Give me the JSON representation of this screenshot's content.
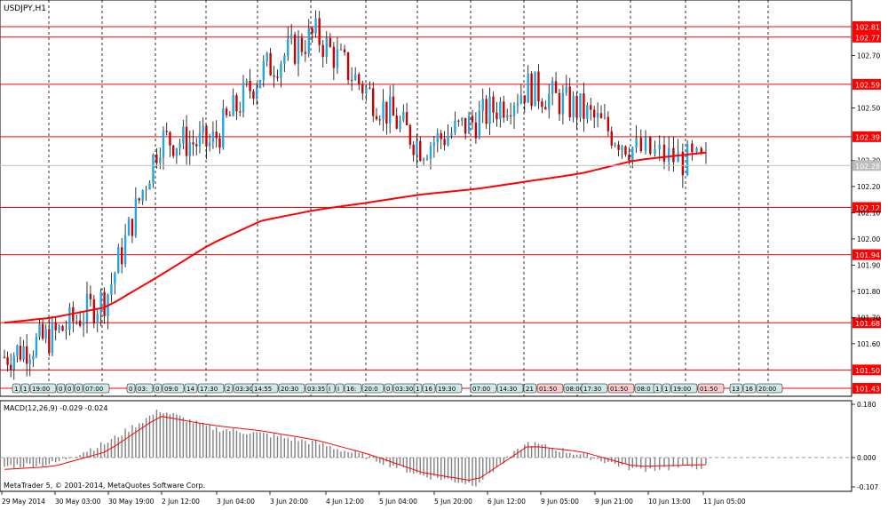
{
  "window": {
    "title": "USDJPY,H1"
  },
  "price_panel": {
    "horizontal_levels": [
      "102.81",
      "102.77",
      "102.59",
      "102.39",
      "102.12",
      "101.94",
      "101.68",
      "101.50",
      "101.43"
    ],
    "current_price": "102.28",
    "axis_ticks": [
      "102.70",
      "102.50",
      "102.30",
      "102.10",
      "101.90",
      "101.70",
      "101.60",
      "102.00",
      "102.20",
      "101.80"
    ],
    "level_color": "#ff0000",
    "bull_color": "#1ea7e1",
    "bear_color": "#cc0000",
    "ma_color": "#ff0000"
  },
  "session_bar": {
    "groups": [
      {
        "items": [
          "1",
          "1",
          "19:00",
          "0",
          "0",
          "0",
          "07:00"
        ]
      },
      {
        "items": [
          "0",
          "03:",
          "0",
          "09:0",
          "14",
          "17:30",
          "2",
          "03:30"
        ]
      },
      {
        "items": [
          "14:55",
          "20:30",
          "03:35"
        ]
      },
      {
        "items": [
          "I",
          "I",
          "16:",
          "20:0",
          "0",
          "03:30"
        ]
      },
      {
        "items": [
          "1",
          "16",
          "19:30"
        ]
      },
      {
        "items": [
          "07:00",
          "14:30",
          "21",
          "01:50",
          "08:00"
        ]
      },
      {
        "items": [
          "17:30",
          "01:50",
          "08:0"
        ]
      },
      {
        "items": [
          "1",
          "1",
          "19:00",
          "01:50"
        ]
      },
      {
        "items": [
          "13",
          "16",
          "20:00"
        ]
      }
    ]
  },
  "macd_panel": {
    "label": "MACD(12,26,9) -0.029 -0.024",
    "axis_ticks": [
      "0.180",
      "0.000",
      "-0.107"
    ],
    "histogram_color": "#808080",
    "signal_color": "#ff0000"
  },
  "time_axis": {
    "labels": [
      "29 May 2014",
      "30 May 03:00",
      "30 May 19:00",
      "2 Jun 12:00",
      "3 Jun 04:00",
      "3 Jun 20:00",
      "4 Jun 12:00",
      "5 Jun 04:00",
      "5 Jun 20:00",
      "6 Jun 12:00",
      "9 Jun 05:00",
      "9 Jun 21:00",
      "10 Jun 13:00",
      "11 Jun 05:00"
    ]
  },
  "copyright": "MetaTrader 5, © 2001-2014, MetaQuotes Software Corp.",
  "chart_data": {
    "type": "candlestick",
    "symbol": "USDJPY",
    "timeframe": "H1",
    "ylim": [
      101.43,
      102.85
    ],
    "series": [
      {
        "name": "close",
        "x": [
          "29 May 2014",
          "30 May 03:00",
          "30 May 19:00",
          "2 Jun 12:00",
          "3 Jun 04:00",
          "3 Jun 20:00",
          "4 Jun 12:00",
          "5 Jun 04:00",
          "5 Jun 20:00",
          "6 Jun 12:00",
          "9 Jun 05:00",
          "9 Jun 21:00",
          "10 Jun 13:00",
          "11 Jun 05:00"
        ],
        "values": [
          101.55,
          101.63,
          101.78,
          102.38,
          102.36,
          102.64,
          102.78,
          102.55,
          102.35,
          102.45,
          102.58,
          102.49,
          102.34,
          102.28
        ]
      },
      {
        "name": "moving_average",
        "values": [
          101.68,
          101.7,
          101.74,
          101.86,
          101.98,
          102.07,
          102.11,
          102.14,
          102.17,
          102.19,
          102.22,
          102.25,
          102.3,
          102.33
        ]
      }
    ],
    "macd": {
      "values": [
        -0.03,
        -0.02,
        0.05,
        0.16,
        0.1,
        0.08,
        0.05,
        0.0,
        -0.06,
        -0.09,
        0.05,
        0.01,
        -0.04,
        -0.03
      ],
      "signal": [
        -0.04,
        -0.03,
        0.02,
        0.14,
        0.11,
        0.09,
        0.06,
        0.01,
        -0.05,
        -0.08,
        0.04,
        0.02,
        -0.03,
        -0.024
      ]
    }
  }
}
